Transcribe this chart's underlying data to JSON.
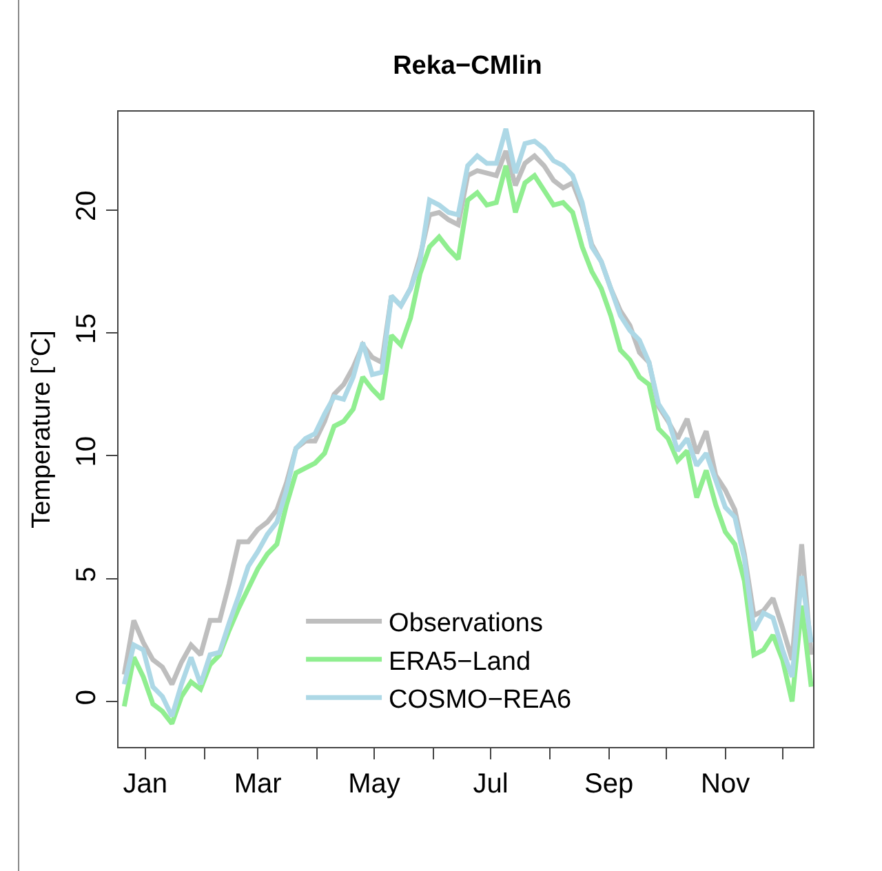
{
  "chart_data": {
    "type": "line",
    "title": "Reka−CMlin",
    "ylabel": "Temperature [°C]",
    "x": [
      "--01-04",
      "--01-09",
      "--01-14",
      "--01-19",
      "--01-24",
      "--01-29",
      "--02-03",
      "--02-08",
      "--02-13",
      "--02-18",
      "--02-23",
      "--02-28",
      "--03-05",
      "--03-10",
      "--03-15",
      "--03-20",
      "--03-25",
      "--03-30",
      "--04-04",
      "--04-09",
      "--04-14",
      "--04-19",
      "--04-24",
      "--04-29",
      "--05-04",
      "--05-09",
      "--05-14",
      "--05-19",
      "--05-24",
      "--05-29",
      "--06-03",
      "--06-08",
      "--06-13",
      "--06-18",
      "--06-23",
      "--06-28",
      "--07-03",
      "--07-08",
      "--07-13",
      "--07-18",
      "--07-23",
      "--07-28",
      "--08-02",
      "--08-07",
      "--08-12",
      "--08-17",
      "--08-22",
      "--08-27",
      "--09-01",
      "--09-06",
      "--09-11",
      "--09-16",
      "--09-21",
      "--09-26",
      "--10-01",
      "--10-06",
      "--10-11",
      "--10-16",
      "--10-21",
      "--10-26",
      "--10-31",
      "--11-05",
      "--11-10",
      "--11-15",
      "--11-20",
      "--11-25",
      "--11-30",
      "--12-05",
      "--12-10",
      "--12-15",
      "--12-20",
      "--12-25",
      "--12-30"
    ],
    "series": [
      {
        "name": "Observations",
        "color": "#bebebe",
        "values": [
          1.1,
          3.3,
          2.4,
          1.7,
          1.4,
          0.7,
          1.6,
          2.3,
          1.9,
          3.3,
          3.3,
          4.8,
          6.5,
          6.5,
          7.0,
          7.3,
          7.8,
          8.9,
          10.3,
          10.6,
          10.6,
          11.4,
          12.5,
          12.9,
          13.6,
          14.5,
          14.0,
          13.8,
          16.5,
          16.1,
          16.8,
          18.1,
          19.8,
          19.9,
          19.6,
          19.4,
          21.4,
          21.6,
          21.5,
          21.4,
          22.4,
          21.0,
          21.9,
          22.2,
          21.8,
          21.2,
          20.9,
          21.1,
          20.1,
          18.6,
          17.9,
          16.8,
          15.9,
          15.3,
          14.2,
          13.8,
          12.0,
          11.4,
          10.7,
          11.5,
          10.1,
          11.0,
          9.2,
          8.6,
          7.8,
          6.0,
          3.5,
          3.7,
          4.2,
          3.0,
          1.7,
          6.4,
          1.9
        ]
      },
      {
        "name": "ERA5−Land",
        "color": "#90ee90",
        "values": [
          -0.2,
          1.8,
          1.0,
          -0.1,
          -0.4,
          -0.9,
          0.2,
          0.8,
          0.5,
          1.5,
          1.9,
          2.9,
          3.8,
          4.6,
          5.4,
          6.0,
          6.4,
          8.0,
          9.3,
          9.5,
          9.7,
          10.1,
          11.2,
          11.4,
          11.9,
          13.2,
          12.7,
          12.3,
          14.9,
          14.5,
          15.6,
          17.4,
          18.5,
          18.9,
          18.4,
          18.0,
          20.4,
          20.7,
          20.2,
          20.3,
          21.8,
          19.9,
          21.1,
          21.4,
          20.8,
          20.2,
          20.3,
          19.9,
          18.5,
          17.5,
          16.8,
          15.7,
          14.3,
          13.9,
          13.2,
          12.9,
          11.1,
          10.7,
          9.8,
          10.2,
          8.3,
          9.4,
          8.0,
          6.9,
          6.4,
          4.9,
          1.9,
          2.1,
          2.7,
          1.7,
          0.0,
          3.9,
          0.6
        ]
      },
      {
        "name": "COSMO−REA6",
        "color": "#add8e6",
        "values": [
          0.7,
          2.3,
          2.1,
          0.6,
          0.2,
          -0.6,
          0.7,
          1.8,
          0.7,
          1.9,
          2.0,
          3.2,
          4.3,
          5.5,
          6.1,
          6.8,
          7.3,
          8.6,
          10.3,
          10.7,
          10.9,
          11.7,
          12.4,
          12.3,
          13.2,
          14.6,
          13.3,
          13.4,
          16.5,
          16.1,
          16.8,
          17.9,
          20.4,
          20.2,
          19.9,
          19.8,
          21.8,
          22.2,
          21.9,
          21.9,
          23.3,
          21.5,
          22.7,
          22.8,
          22.5,
          22.0,
          21.8,
          21.4,
          20.3,
          18.5,
          17.9,
          16.8,
          15.7,
          15.1,
          14.7,
          13.8,
          12.1,
          11.5,
          10.2,
          10.7,
          9.6,
          10.1,
          9.0,
          7.9,
          7.5,
          5.8,
          2.9,
          3.6,
          3.4,
          2.1,
          1.0,
          5.1,
          2.4
        ]
      }
    ],
    "xlim": [
      "--01-01",
      "--12-31"
    ],
    "xticks": [
      {
        "value": "--01-15",
        "label": "Jan"
      },
      {
        "value": "--02-15",
        "label": null
      },
      {
        "value": "--03-15",
        "label": "Mar"
      },
      {
        "value": "--04-15",
        "label": null
      },
      {
        "value": "--05-15",
        "label": "May"
      },
      {
        "value": "--06-15",
        "label": null
      },
      {
        "value": "--07-15",
        "label": "Jul"
      },
      {
        "value": "--08-15",
        "label": null
      },
      {
        "value": "--09-15",
        "label": "Sep"
      },
      {
        "value": "--10-15",
        "label": null
      },
      {
        "value": "--11-15",
        "label": "Nov"
      },
      {
        "value": "--12-15",
        "label": null
      }
    ],
    "ylim": [
      -1.85,
      24.0
    ],
    "yticks": [
      0,
      5,
      10,
      15,
      20
    ],
    "grid": false,
    "legend": "bottom",
    "marker": "none",
    "line_style": "solid"
  }
}
